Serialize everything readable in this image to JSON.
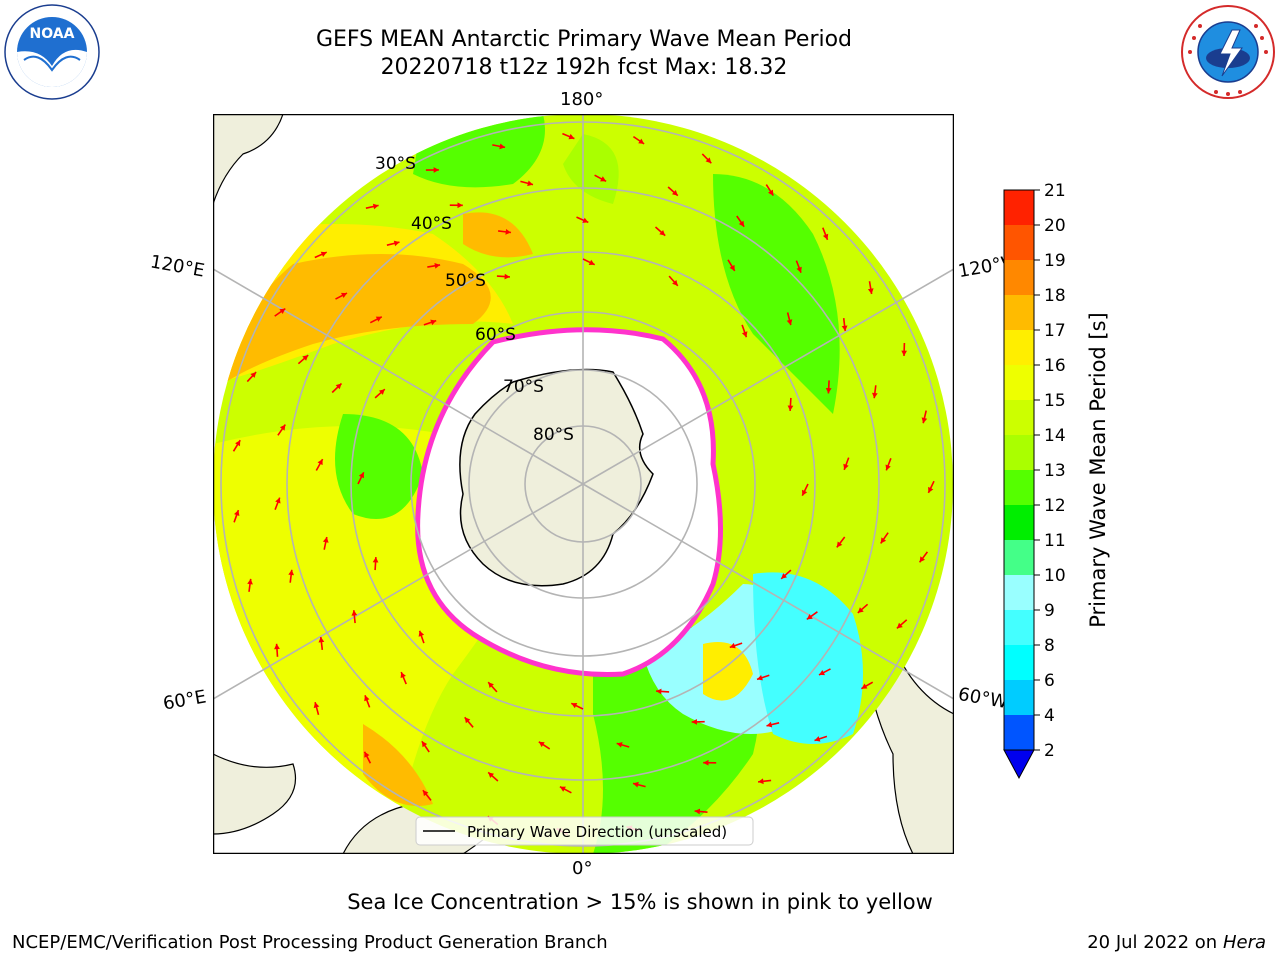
{
  "title": {
    "line1": "GEFS MEAN Antarctic Primary Wave Mean Period",
    "line2": "20220718 t12z 192h fcst   Max: 18.32"
  },
  "logos": {
    "noaa_text": "NOAA",
    "noaa_ring": "NATIONAL OCEANIC AND ATMOSPHERIC ADMINISTRATION · U.S. DEPARTMENT OF COMMERCE",
    "nws_ring": "NATIONAL WEATHER SERVICE"
  },
  "map": {
    "longitude_labels": {
      "top": "180°",
      "bottom": "0°",
      "upper_left": "120°E",
      "upper_right": "120°W",
      "lower_left": "60°E",
      "lower_right": "60°W"
    },
    "latitude_labels": [
      "30°S",
      "40°S",
      "50°S",
      "60°S",
      "70°S",
      "80°S"
    ],
    "legend_label": "Primary Wave Direction (unscaled)",
    "colors": {
      "land": "#efefdc",
      "ice": "#ffffff",
      "ice_edge": "#ff33cc",
      "arrow": "#ff0000",
      "grid": "#b4b4b4"
    }
  },
  "colorbar": {
    "label": "Primary Wave Mean Period [s]",
    "ticks": [
      "2",
      "4",
      "6",
      "8",
      "9",
      "10",
      "11",
      "12",
      "13",
      "14",
      "15",
      "16",
      "17",
      "18",
      "19",
      "20",
      "21"
    ],
    "colors": [
      "#0055ff",
      "#00ccff",
      "#00ffff",
      "#44ffff",
      "#99ffff",
      "#44ff88",
      "#00ee00",
      "#55ff00",
      "#aaff00",
      "#ccff00",
      "#eeff00",
      "#ffee00",
      "#ffbb00",
      "#ff8800",
      "#ff5500",
      "#ff2200"
    ],
    "extend_color": "#0000ee"
  },
  "note": "Sea Ice Concentration > 15% is shown in pink to yellow",
  "footer": {
    "left": "NCEP/EMC/Verification Post Processing Product Generation Branch",
    "right_date": "20 Jul 2022 on ",
    "right_host": "Hera"
  }
}
